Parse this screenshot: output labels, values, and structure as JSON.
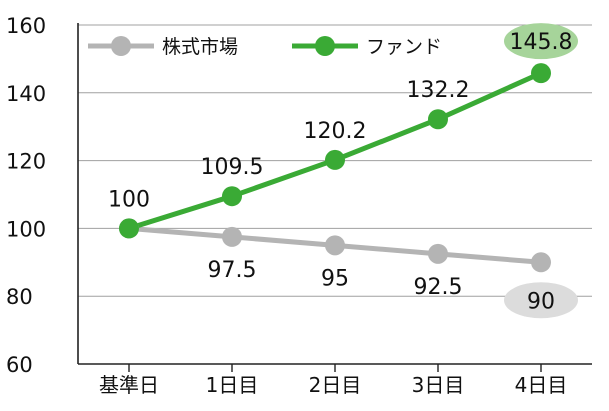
{
  "chart_data": {
    "type": "line",
    "categories": [
      "基準日",
      "1日目",
      "2日目",
      "3日目",
      "4日目"
    ],
    "ylim": [
      60,
      160
    ],
    "yticks": [
      60,
      80,
      100,
      120,
      140,
      160
    ],
    "grid": true,
    "legend": "top-left",
    "series": [
      {
        "name": "株式市場",
        "color": "#b4b4b4",
        "values": [
          100,
          97.5,
          95,
          92.5,
          90
        ],
        "labels": [
          "",
          "97.5",
          "95",
          "92.5",
          "90"
        ],
        "label_position": "below",
        "highlight_last_color": "#dcdcdc"
      },
      {
        "name": "ファンド",
        "color": "#3aaa35",
        "values": [
          100,
          109.5,
          120.2,
          132.2,
          145.8
        ],
        "labels": [
          "100",
          "109.5",
          "120.2",
          "132.2",
          "145.8"
        ],
        "label_position": "above",
        "highlight_last_color": "#a6d49a"
      }
    ]
  }
}
